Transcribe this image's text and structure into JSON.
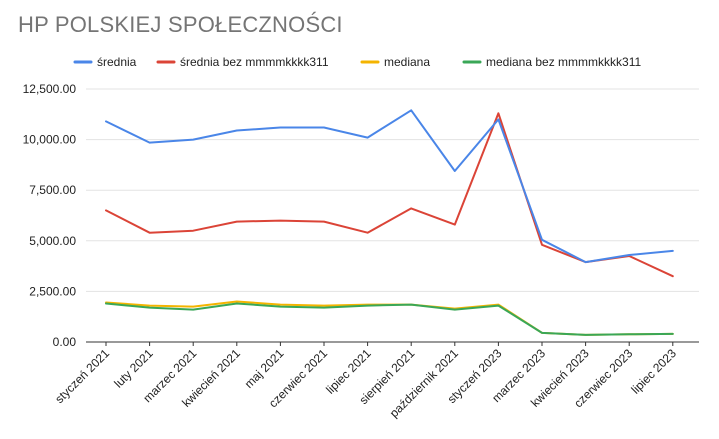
{
  "chart_data": {
    "type": "line",
    "title": "HP POLSKIEJ SPOŁECZNOŚCI",
    "xlabel": "",
    "ylabel": "",
    "ylim": [
      0,
      12500
    ],
    "yticks": [
      0,
      2500,
      5000,
      7500,
      10000,
      12500
    ],
    "ytick_labels": [
      "0.00",
      "2,500.00",
      "5,000.00",
      "7,500.00",
      "10,000.00",
      "12,500.00"
    ],
    "grid": true,
    "legend_position": "top",
    "categories": [
      "styczeń 2021",
      "luty 2021",
      "marzec 2021",
      "kwiecień 2021",
      "maj 2021",
      "czerwiec 2021",
      "lipiec 2021",
      "sierpień 2021",
      "październik 2021",
      "styczeń 2023",
      "marzec 2023",
      "kwiecień 2023",
      "czerwiec 2023",
      "lipiec 2023"
    ],
    "series": [
      {
        "name": "średnia",
        "color": "#4a86e8",
        "values": [
          10900,
          9850,
          10000,
          10450,
          10600,
          10600,
          10100,
          11450,
          8450,
          11000,
          5050,
          3950,
          4300,
          4500
        ]
      },
      {
        "name": "średnia bez mmmmkkkk311",
        "color": "#db4437",
        "values": [
          6500,
          5400,
          5500,
          5950,
          6000,
          5950,
          5400,
          6600,
          5800,
          11300,
          4800,
          3950,
          4250,
          3250
        ]
      },
      {
        "name": "mediana",
        "color": "#f4b400",
        "values": [
          1950,
          1800,
          1750,
          2000,
          1850,
          1800,
          1850,
          1850,
          1650,
          1850,
          450,
          350,
          380,
          400
        ]
      },
      {
        "name": "mediana bez mmmmkkkk311",
        "color": "#3aa757",
        "values": [
          1900,
          1700,
          1600,
          1900,
          1750,
          1700,
          1800,
          1850,
          1600,
          1800,
          450,
          350,
          380,
          400
        ]
      }
    ]
  },
  "colors": {
    "background": "#ffffff",
    "gridline": "#e3e3e3",
    "axis": "#333333",
    "title": "#757575",
    "text": "#222222"
  }
}
